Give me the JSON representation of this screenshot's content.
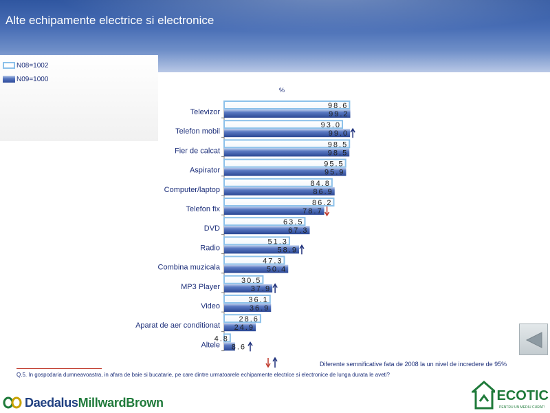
{
  "page": {
    "title": "Alte echipamente electrice si electronice",
    "unit_label": "%",
    "question": "Q.5. In gospodaria dumneavoastra, in afara de baie si bucatarie, pe care dintre urmatoarele echipamente electrice si electronice de lunga durata le aveti?",
    "significance_note": "Diferente semnificative fata de 2008 la un nivel de incredere de 95%",
    "logo_left_part1": "Daedalus",
    "logo_left_part2": "MillwardBrown",
    "logo_right": "ECOTIC",
    "logo_right_tagline": "PENTRU UN MEDIU CURAT!"
  },
  "legend": [
    {
      "label": "N08=1002"
    },
    {
      "label": "N09=1000"
    }
  ],
  "colors": {
    "series_2008_border": "#8cc1ea",
    "series_2009_fill": "#4a68b4",
    "up_arrow": "#1d2f7a",
    "down_arrow": "#c0392b"
  },
  "chart_data": {
    "type": "bar",
    "orientation": "horizontal",
    "categories": [
      "Televizor",
      "Telefon mobil",
      "Fier de calcat",
      "Aspirator",
      "Computer/laptop",
      "Telefon fix",
      "DVD",
      "Radio",
      "Combina muzicala",
      "MP3 Player",
      "Video",
      "Aparat de aer conditionat",
      "Altele"
    ],
    "series": [
      {
        "name": "N08=1002",
        "values": [
          98.6,
          93.0,
          98.5,
          95.5,
          84.8,
          86.2,
          63.5,
          51.3,
          47.3,
          30.5,
          36.1,
          28.6,
          4.8
        ]
      },
      {
        "name": "N09=1000",
        "values": [
          99.2,
          99.0,
          98.5,
          95.9,
          86.9,
          78.7,
          67.3,
          58.9,
          50.4,
          37.9,
          36.9,
          24.9,
          8.6
        ]
      }
    ],
    "significance": [
      "",
      "up",
      "",
      "",
      "",
      "down",
      "",
      "up",
      "",
      "up",
      "",
      "",
      "up"
    ],
    "xlim": [
      0,
      100
    ],
    "ylabel": "%"
  }
}
